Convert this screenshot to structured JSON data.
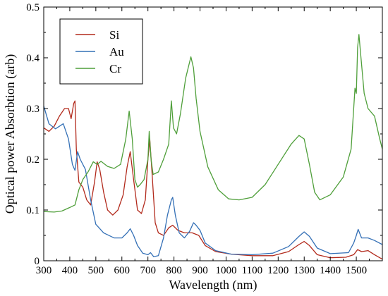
{
  "chart_data": {
    "type": "line",
    "xlabel": "Wavelength (nm)",
    "ylabel": "Optical power Absorbtion (arb)",
    "xlim": [
      300,
      1600
    ],
    "ylim": [
      0,
      0.5
    ],
    "xticks": [
      300,
      400,
      500,
      600,
      700,
      800,
      900,
      1000,
      1100,
      1200,
      1300,
      1400,
      1500
    ],
    "yticks": [
      0,
      0.1,
      0.2,
      0.3,
      0.4,
      0.5
    ],
    "ytick_labels": [
      "0",
      "0.1",
      "0.2",
      "0.3",
      "0.4",
      "0.5"
    ],
    "grid": false,
    "legend_position": "top-left",
    "series": [
      {
        "name": "Si",
        "color": "#b22a1c",
        "points": [
          [
            300,
            0.262
          ],
          [
            320,
            0.255
          ],
          [
            340,
            0.265
          ],
          [
            360,
            0.285
          ],
          [
            380,
            0.3
          ],
          [
            395,
            0.3
          ],
          [
            405,
            0.28
          ],
          [
            415,
            0.31
          ],
          [
            420,
            0.315
          ],
          [
            425,
            0.22
          ],
          [
            435,
            0.155
          ],
          [
            450,
            0.145
          ],
          [
            465,
            0.12
          ],
          [
            480,
            0.11
          ],
          [
            495,
            0.155
          ],
          [
            505,
            0.195
          ],
          [
            515,
            0.18
          ],
          [
            530,
            0.135
          ],
          [
            545,
            0.1
          ],
          [
            565,
            0.09
          ],
          [
            585,
            0.1
          ],
          [
            605,
            0.13
          ],
          [
            620,
            0.185
          ],
          [
            632,
            0.215
          ],
          [
            645,
            0.16
          ],
          [
            660,
            0.1
          ],
          [
            675,
            0.093
          ],
          [
            690,
            0.12
          ],
          [
            700,
            0.2
          ],
          [
            707,
            0.24
          ],
          [
            715,
            0.18
          ],
          [
            728,
            0.075
          ],
          [
            740,
            0.055
          ],
          [
            760,
            0.05
          ],
          [
            780,
            0.065
          ],
          [
            795,
            0.07
          ],
          [
            815,
            0.06
          ],
          [
            840,
            0.055
          ],
          [
            870,
            0.055
          ],
          [
            895,
            0.05
          ],
          [
            920,
            0.03
          ],
          [
            960,
            0.018
          ],
          [
            1020,
            0.013
          ],
          [
            1100,
            0.01
          ],
          [
            1180,
            0.01
          ],
          [
            1240,
            0.018
          ],
          [
            1280,
            0.032
          ],
          [
            1300,
            0.038
          ],
          [
            1320,
            0.03
          ],
          [
            1350,
            0.012
          ],
          [
            1400,
            0.006
          ],
          [
            1460,
            0.007
          ],
          [
            1490,
            0.012
          ],
          [
            1505,
            0.022
          ],
          [
            1520,
            0.018
          ],
          [
            1545,
            0.02
          ],
          [
            1570,
            0.012
          ],
          [
            1600,
            0.003
          ]
        ]
      },
      {
        "name": "Au",
        "color": "#3470b6",
        "points": [
          [
            300,
            0.305
          ],
          [
            320,
            0.27
          ],
          [
            345,
            0.26
          ],
          [
            375,
            0.27
          ],
          [
            395,
            0.24
          ],
          [
            410,
            0.19
          ],
          [
            420,
            0.178
          ],
          [
            430,
            0.215
          ],
          [
            440,
            0.2
          ],
          [
            460,
            0.18
          ],
          [
            480,
            0.12
          ],
          [
            500,
            0.072
          ],
          [
            530,
            0.055
          ],
          [
            570,
            0.045
          ],
          [
            600,
            0.045
          ],
          [
            620,
            0.055
          ],
          [
            632,
            0.063
          ],
          [
            645,
            0.05
          ],
          [
            660,
            0.03
          ],
          [
            680,
            0.015
          ],
          [
            700,
            0.012
          ],
          [
            710,
            0.016
          ],
          [
            722,
            0.008
          ],
          [
            740,
            0.01
          ],
          [
            760,
            0.045
          ],
          [
            775,
            0.09
          ],
          [
            790,
            0.12
          ],
          [
            795,
            0.125
          ],
          [
            805,
            0.09
          ],
          [
            820,
            0.055
          ],
          [
            840,
            0.045
          ],
          [
            860,
            0.058
          ],
          [
            875,
            0.075
          ],
          [
            885,
            0.07
          ],
          [
            900,
            0.06
          ],
          [
            920,
            0.035
          ],
          [
            960,
            0.02
          ],
          [
            1020,
            0.013
          ],
          [
            1100,
            0.012
          ],
          [
            1180,
            0.015
          ],
          [
            1240,
            0.028
          ],
          [
            1280,
            0.048
          ],
          [
            1300,
            0.057
          ],
          [
            1320,
            0.048
          ],
          [
            1350,
            0.025
          ],
          [
            1400,
            0.014
          ],
          [
            1470,
            0.016
          ],
          [
            1490,
            0.035
          ],
          [
            1500,
            0.05
          ],
          [
            1507,
            0.062
          ],
          [
            1520,
            0.045
          ],
          [
            1545,
            0.045
          ],
          [
            1570,
            0.04
          ],
          [
            1600,
            0.032
          ]
        ]
      },
      {
        "name": "Cr",
        "color": "#4f9f3a",
        "points": [
          [
            300,
            0.097
          ],
          [
            340,
            0.096
          ],
          [
            370,
            0.098
          ],
          [
            400,
            0.105
          ],
          [
            420,
            0.11
          ],
          [
            435,
            0.14
          ],
          [
            450,
            0.16
          ],
          [
            470,
            0.175
          ],
          [
            490,
            0.195
          ],
          [
            505,
            0.19
          ],
          [
            520,
            0.196
          ],
          [
            545,
            0.186
          ],
          [
            570,
            0.182
          ],
          [
            595,
            0.19
          ],
          [
            615,
            0.24
          ],
          [
            628,
            0.295
          ],
          [
            640,
            0.24
          ],
          [
            650,
            0.16
          ],
          [
            660,
            0.145
          ],
          [
            670,
            0.15
          ],
          [
            685,
            0.16
          ],
          [
            700,
            0.2
          ],
          [
            705,
            0.255
          ],
          [
            712,
            0.2
          ],
          [
            720,
            0.17
          ],
          [
            740,
            0.175
          ],
          [
            760,
            0.2
          ],
          [
            780,
            0.23
          ],
          [
            790,
            0.315
          ],
          [
            798,
            0.262
          ],
          [
            810,
            0.25
          ],
          [
            825,
            0.29
          ],
          [
            845,
            0.36
          ],
          [
            865,
            0.402
          ],
          [
            875,
            0.38
          ],
          [
            885,
            0.32
          ],
          [
            900,
            0.255
          ],
          [
            930,
            0.185
          ],
          [
            970,
            0.14
          ],
          [
            1010,
            0.122
          ],
          [
            1050,
            0.12
          ],
          [
            1100,
            0.125
          ],
          [
            1150,
            0.15
          ],
          [
            1200,
            0.19
          ],
          [
            1250,
            0.23
          ],
          [
            1280,
            0.247
          ],
          [
            1300,
            0.24
          ],
          [
            1320,
            0.19
          ],
          [
            1340,
            0.135
          ],
          [
            1360,
            0.12
          ],
          [
            1400,
            0.13
          ],
          [
            1450,
            0.165
          ],
          [
            1480,
            0.22
          ],
          [
            1495,
            0.34
          ],
          [
            1500,
            0.33
          ],
          [
            1505,
            0.42
          ],
          [
            1510,
            0.446
          ],
          [
            1518,
            0.4
          ],
          [
            1530,
            0.33
          ],
          [
            1545,
            0.3
          ],
          [
            1570,
            0.285
          ],
          [
            1590,
            0.24
          ],
          [
            1600,
            0.22
          ]
        ]
      }
    ]
  }
}
